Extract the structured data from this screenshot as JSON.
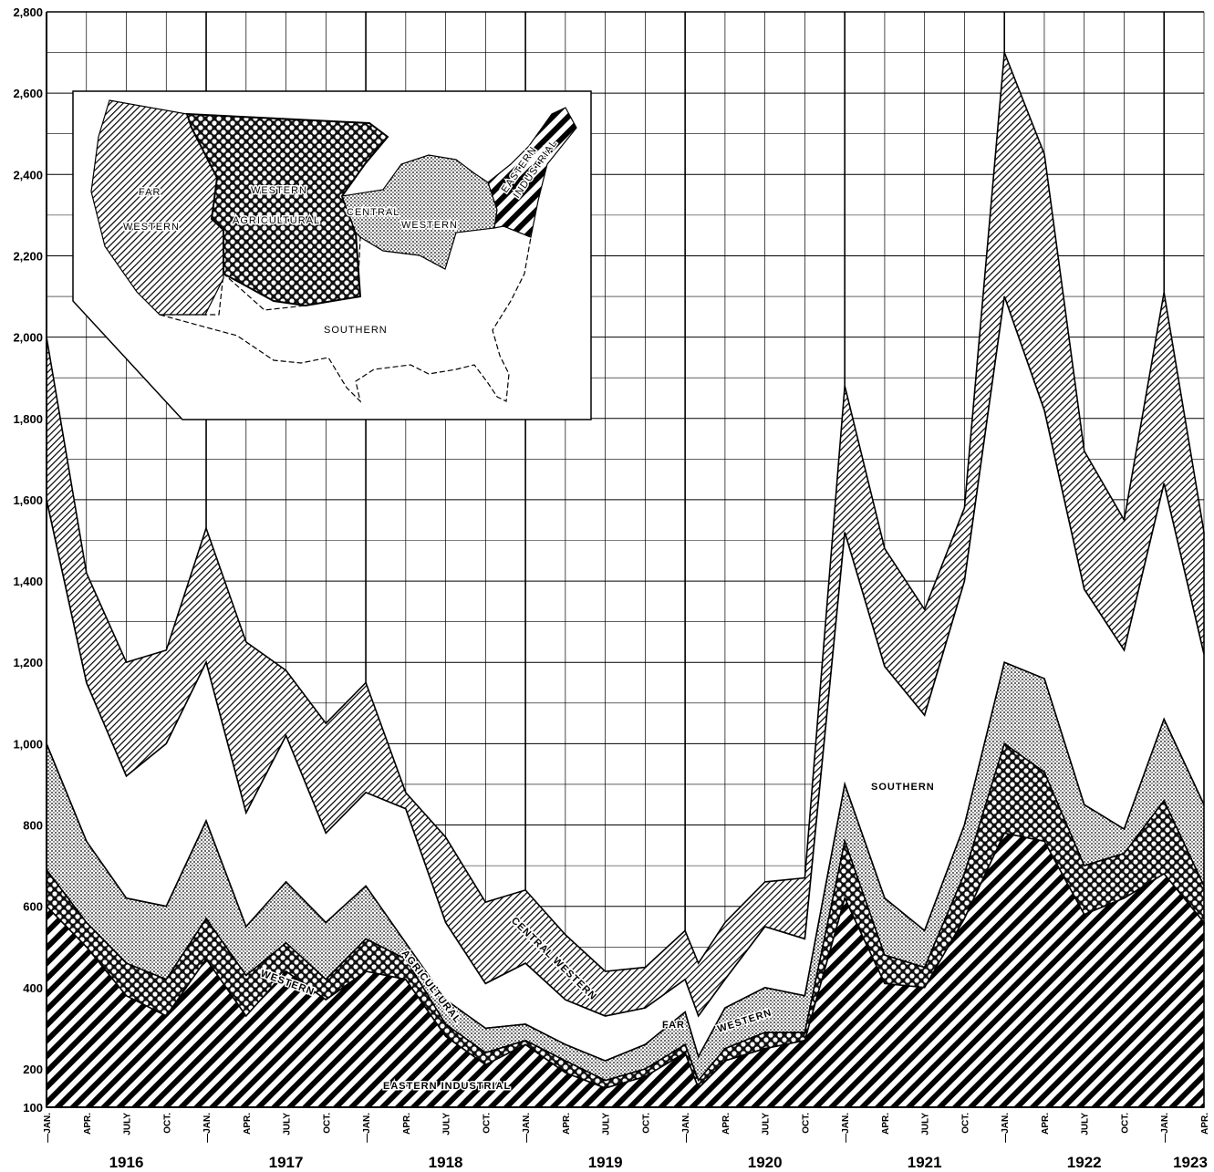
{
  "chart_data": {
    "type": "area",
    "stacked": true,
    "ylim": [
      100,
      2800
    ],
    "yticks": [
      100,
      200,
      400,
      600,
      800,
      "1,000",
      "1,200",
      "1,400",
      "1,600",
      "1,800",
      "2,000",
      "2,200",
      "2,400",
      "2,600",
      "2,800"
    ],
    "x_month_labels": [
      "JAN.",
      "APR.",
      "JULY",
      "OCT."
    ],
    "last_month_label": "APR.",
    "years": [
      "1916",
      "1917",
      "1918",
      "1919",
      "1920",
      "1921",
      "1922",
      "1923"
    ],
    "x_start": "1916-01",
    "x_end": "1923-04",
    "grid": true,
    "series": [
      {
        "name": "EASTERN INDUSTRIAL",
        "pattern": "diag-bold",
        "keypoints": [
          [
            0,
            600
          ],
          [
            3,
            500
          ],
          [
            6,
            380
          ],
          [
            9,
            330
          ],
          [
            12,
            470
          ],
          [
            15,
            330
          ],
          [
            18,
            440
          ],
          [
            21,
            370
          ],
          [
            24,
            440
          ],
          [
            27,
            420
          ],
          [
            30,
            280
          ],
          [
            33,
            210
          ],
          [
            36,
            260
          ],
          [
            39,
            190
          ],
          [
            42,
            150
          ],
          [
            45,
            180
          ],
          [
            48,
            240
          ],
          [
            49,
            150
          ],
          [
            51,
            220
          ],
          [
            54,
            250
          ],
          [
            57,
            270
          ],
          [
            60,
            620
          ],
          [
            63,
            410
          ],
          [
            66,
            400
          ],
          [
            69,
            570
          ],
          [
            72,
            780
          ],
          [
            75,
            760
          ],
          [
            78,
            580
          ],
          [
            81,
            620
          ],
          [
            84,
            680
          ],
          [
            87,
            560
          ]
        ]
      },
      {
        "name": "WESTERN AGRICULTURAL",
        "pattern": "crosshatch",
        "keypoints": [
          [
            0,
            690
          ],
          [
            3,
            560
          ],
          [
            6,
            460
          ],
          [
            9,
            420
          ],
          [
            12,
            570
          ],
          [
            15,
            430
          ],
          [
            18,
            510
          ],
          [
            21,
            420
          ],
          [
            24,
            520
          ],
          [
            27,
            470
          ],
          [
            30,
            310
          ],
          [
            33,
            240
          ],
          [
            36,
            270
          ],
          [
            39,
            220
          ],
          [
            42,
            170
          ],
          [
            45,
            200
          ],
          [
            48,
            260
          ],
          [
            49,
            170
          ],
          [
            51,
            250
          ],
          [
            54,
            290
          ],
          [
            57,
            290
          ],
          [
            60,
            760
          ],
          [
            63,
            480
          ],
          [
            66,
            450
          ],
          [
            69,
            680
          ],
          [
            72,
            1000
          ],
          [
            75,
            930
          ],
          [
            78,
            700
          ],
          [
            81,
            730
          ],
          [
            84,
            860
          ],
          [
            87,
            650
          ]
        ]
      },
      {
        "name": "FAR WESTERN",
        "pattern": "dots",
        "keypoints": [
          [
            0,
            1000
          ],
          [
            3,
            760
          ],
          [
            6,
            620
          ],
          [
            9,
            600
          ],
          [
            12,
            810
          ],
          [
            15,
            550
          ],
          [
            18,
            660
          ],
          [
            21,
            560
          ],
          [
            24,
            650
          ],
          [
            27,
            510
          ],
          [
            30,
            370
          ],
          [
            33,
            300
          ],
          [
            36,
            310
          ],
          [
            39,
            260
          ],
          [
            42,
            220
          ],
          [
            45,
            260
          ],
          [
            48,
            340
          ],
          [
            49,
            230
          ],
          [
            51,
            350
          ],
          [
            54,
            400
          ],
          [
            57,
            380
          ],
          [
            60,
            900
          ],
          [
            63,
            620
          ],
          [
            66,
            540
          ],
          [
            69,
            800
          ],
          [
            72,
            1200
          ],
          [
            75,
            1160
          ],
          [
            78,
            850
          ],
          [
            81,
            790
          ],
          [
            84,
            1060
          ],
          [
            87,
            850
          ]
        ]
      },
      {
        "name": "SOUTHERN",
        "pattern": "white",
        "keypoints": [
          [
            0,
            1600
          ],
          [
            3,
            1150
          ],
          [
            6,
            920
          ],
          [
            9,
            1000
          ],
          [
            12,
            1200
          ],
          [
            15,
            830
          ],
          [
            18,
            1020
          ],
          [
            21,
            780
          ],
          [
            24,
            880
          ],
          [
            27,
            840
          ],
          [
            30,
            560
          ],
          [
            33,
            410
          ],
          [
            36,
            460
          ],
          [
            39,
            370
          ],
          [
            42,
            330
          ],
          [
            45,
            350
          ],
          [
            48,
            420
          ],
          [
            49,
            330
          ],
          [
            51,
            420
          ],
          [
            54,
            550
          ],
          [
            57,
            520
          ],
          [
            60,
            1520
          ],
          [
            63,
            1190
          ],
          [
            66,
            1070
          ],
          [
            69,
            1400
          ],
          [
            72,
            2100
          ],
          [
            75,
            1820
          ],
          [
            78,
            1380
          ],
          [
            81,
            1230
          ],
          [
            84,
            1640
          ],
          [
            87,
            1220
          ]
        ]
      },
      {
        "name": "CENTRAL WESTERN",
        "pattern": "diag-fine",
        "keypoints": [
          [
            0,
            2000
          ],
          [
            3,
            1420
          ],
          [
            6,
            1200
          ],
          [
            9,
            1230
          ],
          [
            12,
            1530
          ],
          [
            15,
            1250
          ],
          [
            18,
            1180
          ],
          [
            21,
            1050
          ],
          [
            24,
            1150
          ],
          [
            27,
            880
          ],
          [
            30,
            770
          ],
          [
            33,
            610
          ],
          [
            36,
            640
          ],
          [
            39,
            530
          ],
          [
            42,
            440
          ],
          [
            45,
            450
          ],
          [
            48,
            540
          ],
          [
            49,
            460
          ],
          [
            51,
            560
          ],
          [
            54,
            660
          ],
          [
            57,
            670
          ],
          [
            60,
            1880
          ],
          [
            63,
            1480
          ],
          [
            66,
            1330
          ],
          [
            69,
            1580
          ],
          [
            72,
            2700
          ],
          [
            75,
            2450
          ],
          [
            78,
            1720
          ],
          [
            81,
            1550
          ],
          [
            84,
            2110
          ],
          [
            87,
            1520
          ]
        ]
      }
    ]
  },
  "map": {
    "labels": {
      "far_western_1": "FAR",
      "far_western_2": "WESTERN",
      "western_agricultural_1": "WESTERN",
      "western_agricultural_2": "AGRICULTURAL",
      "central_western_1": "CENTRAL",
      "central_western_2": "WESTERN",
      "eastern_industrial_1": "EASTERN",
      "eastern_industrial_2": "INDUSTRIAL",
      "southern": "SOUTHERN"
    }
  },
  "band_labels": {
    "southern": "SOUTHERN",
    "central_western": "CENTRAL WESTERN",
    "western": "WESTERN",
    "agricultural": "AGRICULTURAL",
    "far": "FAR",
    "far_western": "WESTERN",
    "eastern_industrial": "EASTERN INDUSTRIAL"
  }
}
